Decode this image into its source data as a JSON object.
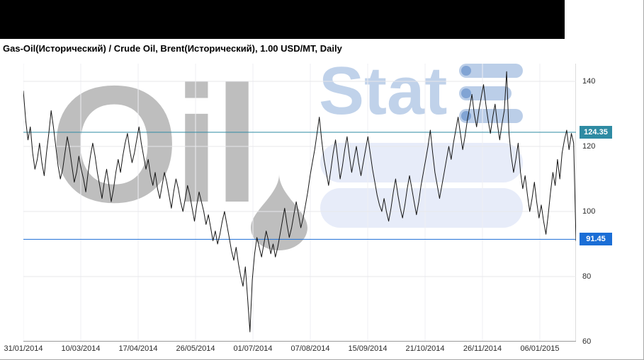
{
  "header": {
    "title": "Gas-Oil(Исторический) / Crude Oil, Brent(Исторический), 1.00 USD/MT, Daily"
  },
  "watermark": {
    "oil": "Oil",
    "stat": "Stat"
  },
  "chart_data": {
    "type": "line",
    "title": "Gas-Oil(Исторический) / Crude Oil, Brent(Исторический), 1.00 USD/MT, Daily",
    "timeframe": "Daily",
    "unit": "USD/MT",
    "x_tick_labels": [
      "31/01/2014",
      "10/03/2014",
      "17/04/2014",
      "26/05/2014",
      "01/07/2014",
      "07/08/2014",
      "15/09/2014",
      "21/10/2014",
      "26/11/2014",
      "06/01/2015"
    ],
    "y_ticks": [
      60,
      80,
      100,
      120,
      140
    ],
    "ylim": [
      60,
      145
    ],
    "grid": true,
    "legend_position": "none",
    "series": [
      {
        "name": "Gas-Oil / Crude Oil Brent",
        "color": "#161616",
        "values": [
          137,
          128,
          122,
          126,
          118,
          113,
          116,
          121,
          115,
          111,
          118,
          124,
          131,
          126,
          120,
          114,
          110,
          113,
          118,
          123,
          119,
          114,
          109,
          112,
          117,
          113,
          110,
          106,
          112,
          117,
          121,
          117,
          112,
          108,
          104,
          109,
          113,
          108,
          103,
          107,
          112,
          116,
          112,
          117,
          121,
          124,
          119,
          115,
          118,
          122,
          126,
          121,
          117,
          113,
          116,
          111,
          108,
          112,
          107,
          104,
          108,
          112,
          109,
          105,
          101,
          106,
          110,
          107,
          103,
          100,
          104,
          108,
          105,
          101,
          97,
          102,
          106,
          103,
          100,
          96,
          99,
          95,
          91,
          94,
          90,
          93,
          97,
          100,
          96,
          92,
          88,
          85,
          89,
          84,
          80,
          77,
          83,
          73,
          63,
          79,
          87,
          92,
          89,
          86,
          90,
          94,
          91,
          87,
          90,
          86,
          89,
          93,
          97,
          101,
          96,
          92,
          95,
          99,
          103,
          99,
          95,
          98,
          102,
          106,
          111,
          115,
          119,
          124,
          129,
          122,
          116,
          112,
          108,
          113,
          118,
          122,
          116,
          110,
          114,
          119,
          123,
          117,
          112,
          116,
          120,
          115,
          111,
          115,
          119,
          123,
          118,
          113,
          109,
          105,
          102,
          100,
          104,
          100,
          97,
          101,
          106,
          110,
          105,
          101,
          98,
          102,
          107,
          111,
          107,
          103,
          99,
          103,
          108,
          112,
          116,
          120,
          125,
          118,
          112,
          108,
          104,
          108,
          112,
          116,
          120,
          116,
          121,
          125,
          129,
          124,
          119,
          123,
          128,
          132,
          136,
          130,
          126,
          131,
          135,
          139,
          133,
          128,
          124,
          129,
          133,
          127,
          122,
          127,
          131,
          143,
          124,
          117,
          112,
          116,
          121,
          112,
          107,
          111,
          105,
          100,
          104,
          109,
          103,
          98,
          102,
          97,
          93,
          99,
          106,
          112,
          108,
          116,
          110,
          118,
          122,
          125,
          119,
          124,
          121,
          91
        ]
      }
    ],
    "hlines": [
      {
        "label": "124.35",
        "value": 124.35,
        "color": "#2e8ba3"
      },
      {
        "label": "91.45",
        "value": 91.45,
        "color": "#1b6ed6"
      }
    ]
  }
}
